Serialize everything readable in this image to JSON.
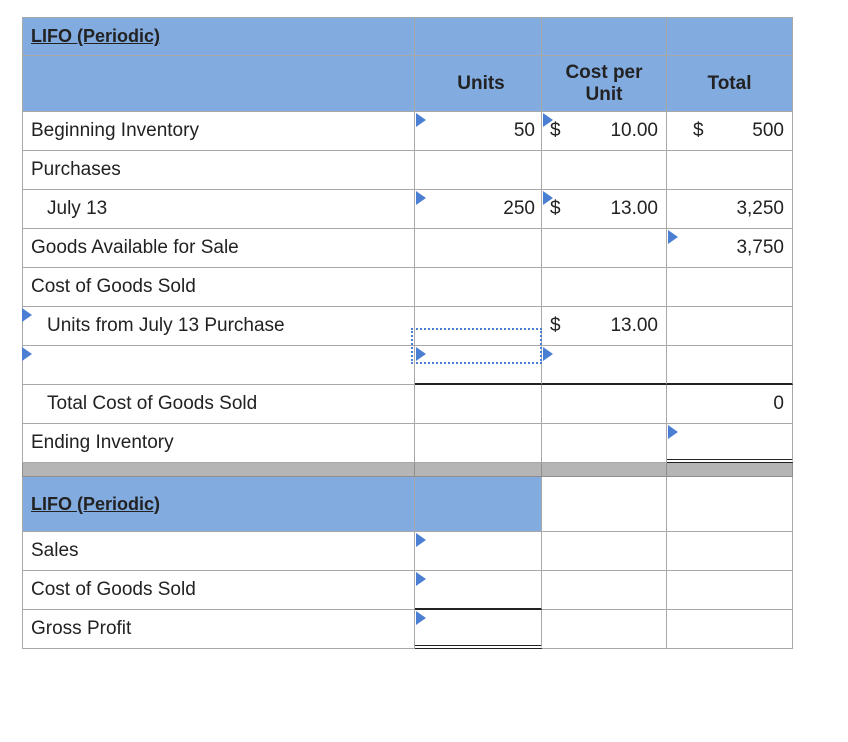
{
  "section1": {
    "title": "LIFO (Periodic)",
    "headers": {
      "units": "Units",
      "cost_per_unit": "Cost per Unit",
      "total": "Total"
    },
    "rows": {
      "beginning_inventory": {
        "label": "Beginning Inventory",
        "units": "50",
        "cost_dollar": "$",
        "cost": "10.00",
        "total_dollar": "$",
        "total": "500"
      },
      "purchases": {
        "label": "Purchases"
      },
      "july13": {
        "label": "July 13",
        "units": "250",
        "cost_dollar": "$",
        "cost": "13.00",
        "total": "3,250"
      },
      "goods_available": {
        "label": "Goods Available for Sale",
        "total": "3,750"
      },
      "cogs": {
        "label": "Cost of Goods Sold"
      },
      "units_july13": {
        "label": "Units from July 13 Purchase",
        "cost_dollar": "$",
        "cost": "13.00"
      },
      "blank": {
        "label": ""
      },
      "total_cogs": {
        "label": "Total Cost of Goods Sold",
        "total": "0"
      },
      "ending_inventory": {
        "label": "Ending Inventory"
      }
    }
  },
  "section2": {
    "title": "LIFO (Periodic)",
    "rows": {
      "sales": {
        "label": "Sales"
      },
      "cogs": {
        "label": "Cost of Goods Sold"
      },
      "gross_profit": {
        "label": "Gross Profit"
      }
    }
  },
  "colors": {
    "header_blue": "#82abe0",
    "indicator_blue": "#4a7fd4",
    "separator_gray": "#b5b5b5"
  }
}
